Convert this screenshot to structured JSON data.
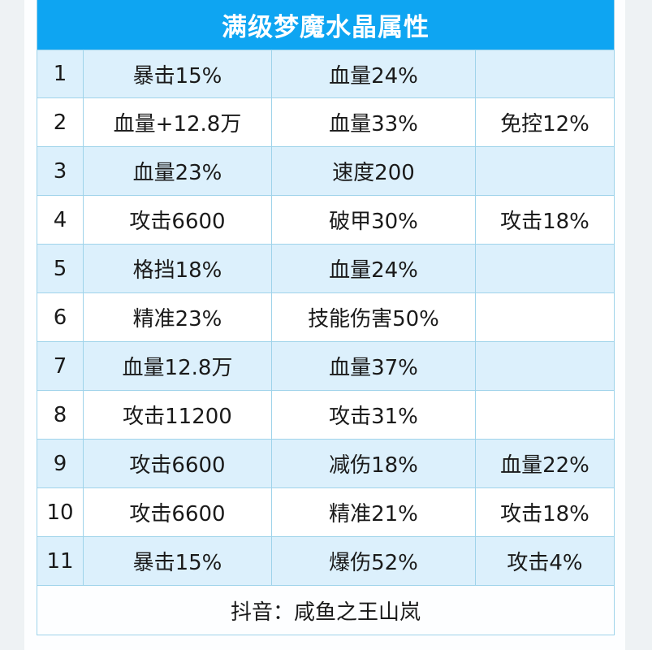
{
  "title": "满级梦魔水晶属性",
  "rows": [
    {
      "level": "1",
      "attr1": "暴击15%",
      "attr2": "血量24%",
      "attr3": ""
    },
    {
      "level": "2",
      "attr1": "血量+12.8万",
      "attr2": "血量33%",
      "attr3": "免控12%"
    },
    {
      "level": "3",
      "attr1": "血量23%",
      "attr2": "速度200",
      "attr3": ""
    },
    {
      "level": "4",
      "attr1": "攻击6600",
      "attr2": "破甲30%",
      "attr3": "攻击18%"
    },
    {
      "level": "5",
      "attr1": "格挡18%",
      "attr2": "血量24%",
      "attr3": ""
    },
    {
      "level": "6",
      "attr1": "精准23%",
      "attr2": "技能伤害50%",
      "attr3": ""
    },
    {
      "level": "7",
      "attr1": "血量12.8万",
      "attr2": "血量37%",
      "attr3": ""
    },
    {
      "level": "8",
      "attr1": "攻击11200",
      "attr2": "攻击31%",
      "attr3": ""
    },
    {
      "level": "9",
      "attr1": "攻击6600",
      "attr2": "减伤18%",
      "attr3": "血量22%"
    },
    {
      "level": "10",
      "attr1": "攻击6600",
      "attr2": "精准21%",
      "attr3": "攻击18%"
    },
    {
      "level": "11",
      "attr1": "暴击15%",
      "attr2": "爆伤52%",
      "attr3": "攻击4%"
    }
  ],
  "footer": "抖音：咸鱼之王山岚",
  "colors": {
    "header_bg": "#0ea5f2",
    "row_alt_bg": "#dcf0fc",
    "border": "#9fd3ea"
  }
}
